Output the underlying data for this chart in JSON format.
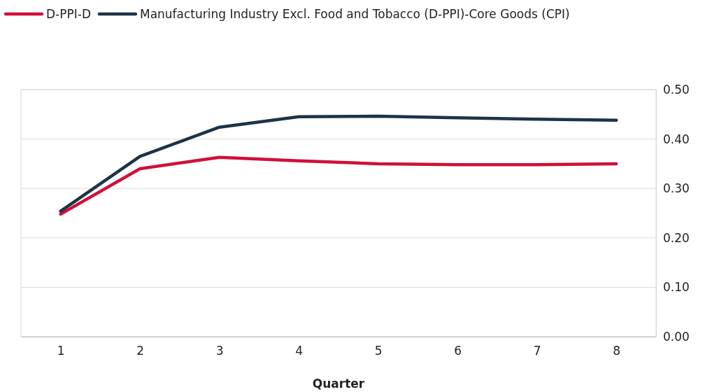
{
  "chart_data": {
    "type": "line",
    "xlabel": "Quarter",
    "categories": [
      "1",
      "2",
      "3",
      "4",
      "5",
      "6",
      "7",
      "8"
    ],
    "series": [
      {
        "name": "D-PPI-D",
        "color": "#d0103a",
        "values": [
          0.248,
          0.34,
          0.363,
          0.356,
          0.35,
          0.348,
          0.348,
          0.35
        ]
      },
      {
        "name": "Manufacturing Industry Excl. Food and Tobacco (D-PPI)-Core Goods (CPI)",
        "color": "#1f3347",
        "values": [
          0.254,
          0.365,
          0.424,
          0.445,
          0.446,
          0.443,
          0.44,
          0.438
        ]
      }
    ],
    "ylim": [
      0,
      0.5
    ],
    "yticks": [
      {
        "value": 0,
        "label": "0.00"
      },
      {
        "value": 0.1,
        "label": "0.10"
      },
      {
        "value": 0.2,
        "label": "0.20"
      },
      {
        "value": 0.3,
        "label": "0.30"
      },
      {
        "value": 0.4,
        "label": "0.40"
      },
      {
        "value": 0.5,
        "label": "0.50"
      }
    ],
    "grid": "y",
    "legend": "top",
    "marker": "none",
    "line_style": "solid"
  }
}
